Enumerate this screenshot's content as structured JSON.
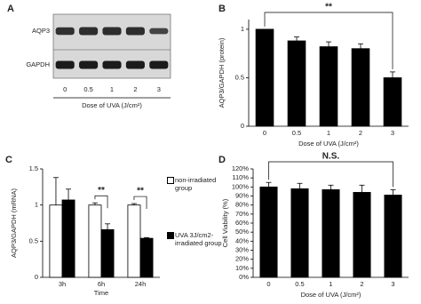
{
  "chart_data": [
    {
      "type": "blot",
      "label": "A",
      "rows": [
        "AQP3",
        "GAPDH"
      ],
      "categories": [
        "0",
        "0.5",
        "1",
        "2",
        "3"
      ],
      "xlabel": "Dose of UVA (J/cm²)"
    },
    {
      "type": "bar",
      "label": "B",
      "categories": [
        "0",
        "0.5",
        "1",
        "2",
        "3"
      ],
      "values": [
        1.0,
        0.88,
        0.82,
        0.8,
        0.5
      ],
      "errors": [
        0.0,
        0.04,
        0.05,
        0.05,
        0.06
      ],
      "color": "#000000",
      "ylim": [
        0,
        1.1
      ],
      "yticks": [
        0,
        0.5,
        1
      ],
      "ylabel": "AQP3/GAPDH (protein)",
      "xlabel": "Dose of UVA (J/cm²)",
      "brackets": [
        {
          "label": "**",
          "between": [
            "0",
            "3"
          ]
        }
      ]
    },
    {
      "type": "bar",
      "label": "C",
      "categories": [
        "3h",
        "6h",
        "24h"
      ],
      "series": [
        {
          "name": "non-irradiated group",
          "color": "#ffffff",
          "values": [
            1.0,
            1.0,
            1.0
          ],
          "errors": [
            0.38,
            0.03,
            0.02
          ]
        },
        {
          "name": "UVA 3J/cm2-irradiated group",
          "color": "#000000",
          "values": [
            1.07,
            0.66,
            0.54
          ],
          "errors": [
            0.15,
            0.08,
            0.01
          ]
        }
      ],
      "ylim": [
        0,
        1.5
      ],
      "yticks": [
        0,
        0.5,
        1,
        1.5
      ],
      "ylabel": "AQP3/GAPDH (mRNA)",
      "xlabel": "Time",
      "brackets": [
        {
          "label": "**",
          "category": "6h"
        },
        {
          "label": "**",
          "category": "24h"
        }
      ]
    },
    {
      "type": "bar",
      "label": "D",
      "categories": [
        "0",
        "0.5",
        "1",
        "2",
        "3"
      ],
      "values": [
        100,
        98,
        97,
        94,
        91
      ],
      "errors": [
        5,
        6,
        5,
        8,
        6
      ],
      "color": "#000000",
      "ylim": [
        0,
        120
      ],
      "yticks": [
        {
          "value": 0,
          "label": "0%"
        },
        {
          "value": 10,
          "label": "10%"
        },
        {
          "value": 20,
          "label": "20%"
        },
        {
          "value": 30,
          "label": "30%"
        },
        {
          "value": 40,
          "label": "40%"
        },
        {
          "value": 50,
          "label": "50%"
        },
        {
          "value": 60,
          "label": "60%"
        },
        {
          "value": 70,
          "label": "70%"
        },
        {
          "value": 80,
          "label": "80%"
        },
        {
          "value": 90,
          "label": "90%"
        },
        {
          "value": 100,
          "label": "100%"
        },
        {
          "value": 110,
          "label": "110%"
        },
        {
          "value": 120,
          "label": "120%"
        }
      ],
      "ylabel": "Cell Viability (%)",
      "xlabel": "Dose of UVA (J/cm²)",
      "brackets": [
        {
          "label": "N.S.",
          "between": [
            "0",
            "3"
          ]
        }
      ]
    }
  ]
}
